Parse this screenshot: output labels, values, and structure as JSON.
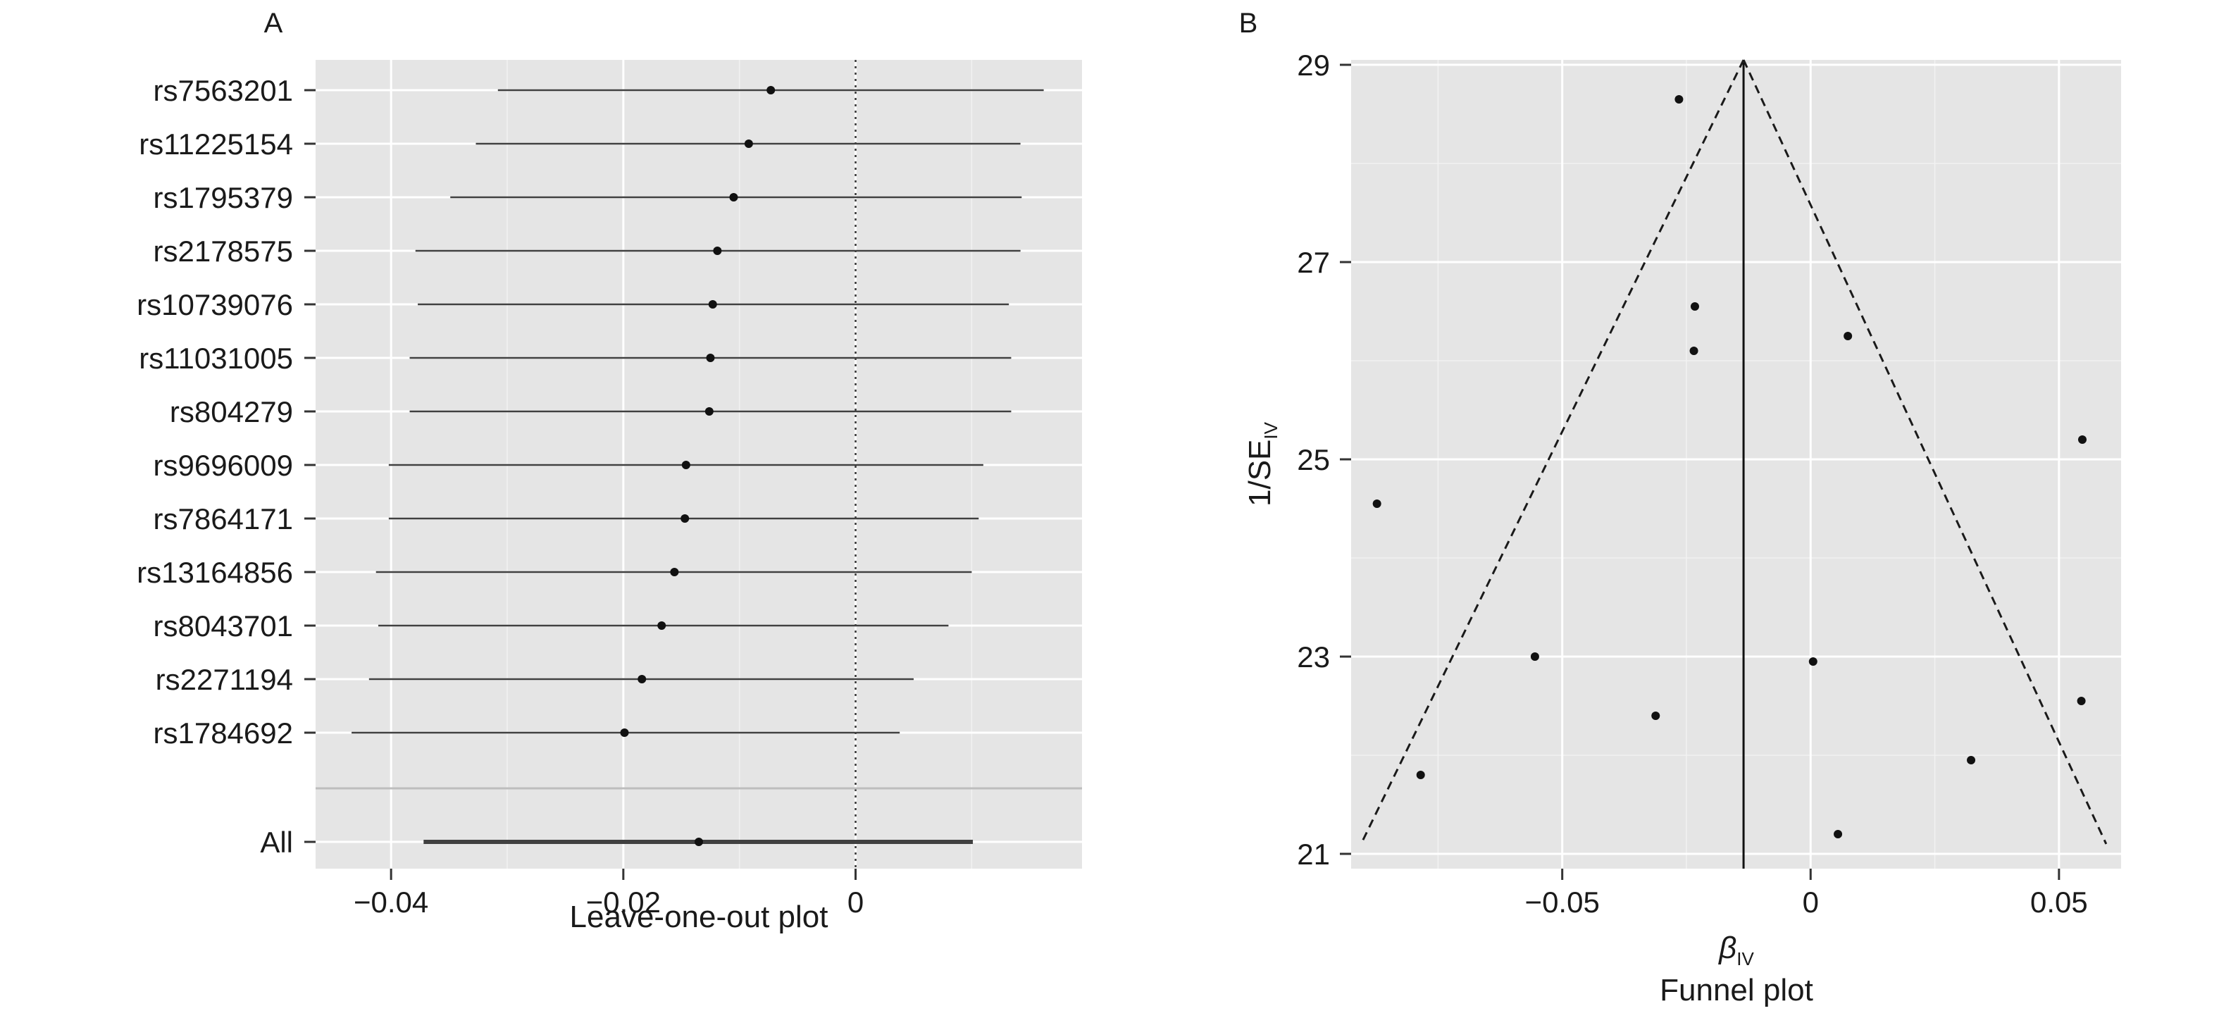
{
  "chart_data": [
    {
      "type": "scatter",
      "panel_label": "A",
      "xlabel": "Leave-one-out plot",
      "ylabel": "",
      "xlim": [
        -0.0465,
        0.0195
      ],
      "x_ticks": [
        -0.04,
        -0.02,
        0
      ],
      "x_tick_labels": [
        "−0.04",
        "−0.02",
        "0"
      ],
      "reference_line_x": 0,
      "grid": true,
      "background": "#e5e5e5",
      "categories": [
        "rs7563201",
        "rs11225154",
        "rs1795379",
        "rs2178575",
        "rs10739076",
        "rs11031005",
        "rs804279",
        "rs9696009",
        "rs7864171",
        "rs13164856",
        "rs8043701",
        "rs2271194",
        "rs1784692",
        "All"
      ],
      "estimates": [
        -0.0073,
        -0.0092,
        -0.0105,
        -0.0119,
        -0.0123,
        -0.0125,
        -0.0126,
        -0.0146,
        -0.0147,
        -0.0156,
        -0.0167,
        -0.0184,
        -0.0199,
        -0.0135
      ],
      "ci_lower": [
        -0.0308,
        -0.0327,
        -0.0349,
        -0.0379,
        -0.0377,
        -0.0384,
        -0.0384,
        -0.0402,
        -0.0402,
        -0.0413,
        -0.0411,
        -0.0419,
        -0.0434,
        -0.0372
      ],
      "ci_upper": [
        0.0162,
        0.0142,
        0.0143,
        0.0142,
        0.0132,
        0.0134,
        0.0134,
        0.011,
        0.0106,
        0.01,
        0.008,
        0.005,
        0.0038,
        0.0101
      ]
    },
    {
      "type": "scatter",
      "panel_label": "B",
      "xlabel": "Funnel plot",
      "x_symbol": "β",
      "x_symbol_sub": "IV",
      "ylabel_main": "1/SE",
      "ylabel_sub": "IV",
      "xlim": [
        -0.0925,
        0.0625
      ],
      "ylim": [
        20.85,
        29.05
      ],
      "x_ticks": [
        -0.05,
        0,
        0.05
      ],
      "x_tick_labels": [
        "−0.05",
        "0",
        "0.05"
      ],
      "y_ticks": [
        21,
        23,
        25,
        27,
        29
      ],
      "y_tick_labels": [
        "21",
        "23",
        "25",
        "27",
        "29"
      ],
      "grid": true,
      "background": "#e5e5e5",
      "vertical_line_x": -0.0135,
      "funnel_apex": [
        -0.0135,
        29.05
      ],
      "funnel_left_base": [
        -0.0905,
        21.1
      ],
      "funnel_right_base": [
        0.0595,
        21.1
      ],
      "points": [
        {
          "x": -0.0265,
          "y": 28.65
        },
        {
          "x": -0.0233,
          "y": 26.55
        },
        {
          "x": -0.0235,
          "y": 26.1
        },
        {
          "x": 0.0075,
          "y": 26.25
        },
        {
          "x": 0.0547,
          "y": 25.2
        },
        {
          "x": -0.0873,
          "y": 24.55
        },
        {
          "x": -0.0555,
          "y": 23.0
        },
        {
          "x": 0.0005,
          "y": 22.95
        },
        {
          "x": 0.0545,
          "y": 22.55
        },
        {
          "x": -0.0312,
          "y": 22.4
        },
        {
          "x": 0.0323,
          "y": 21.95
        },
        {
          "x": -0.0785,
          "y": 21.8
        },
        {
          "x": 0.0055,
          "y": 21.2
        }
      ]
    }
  ]
}
